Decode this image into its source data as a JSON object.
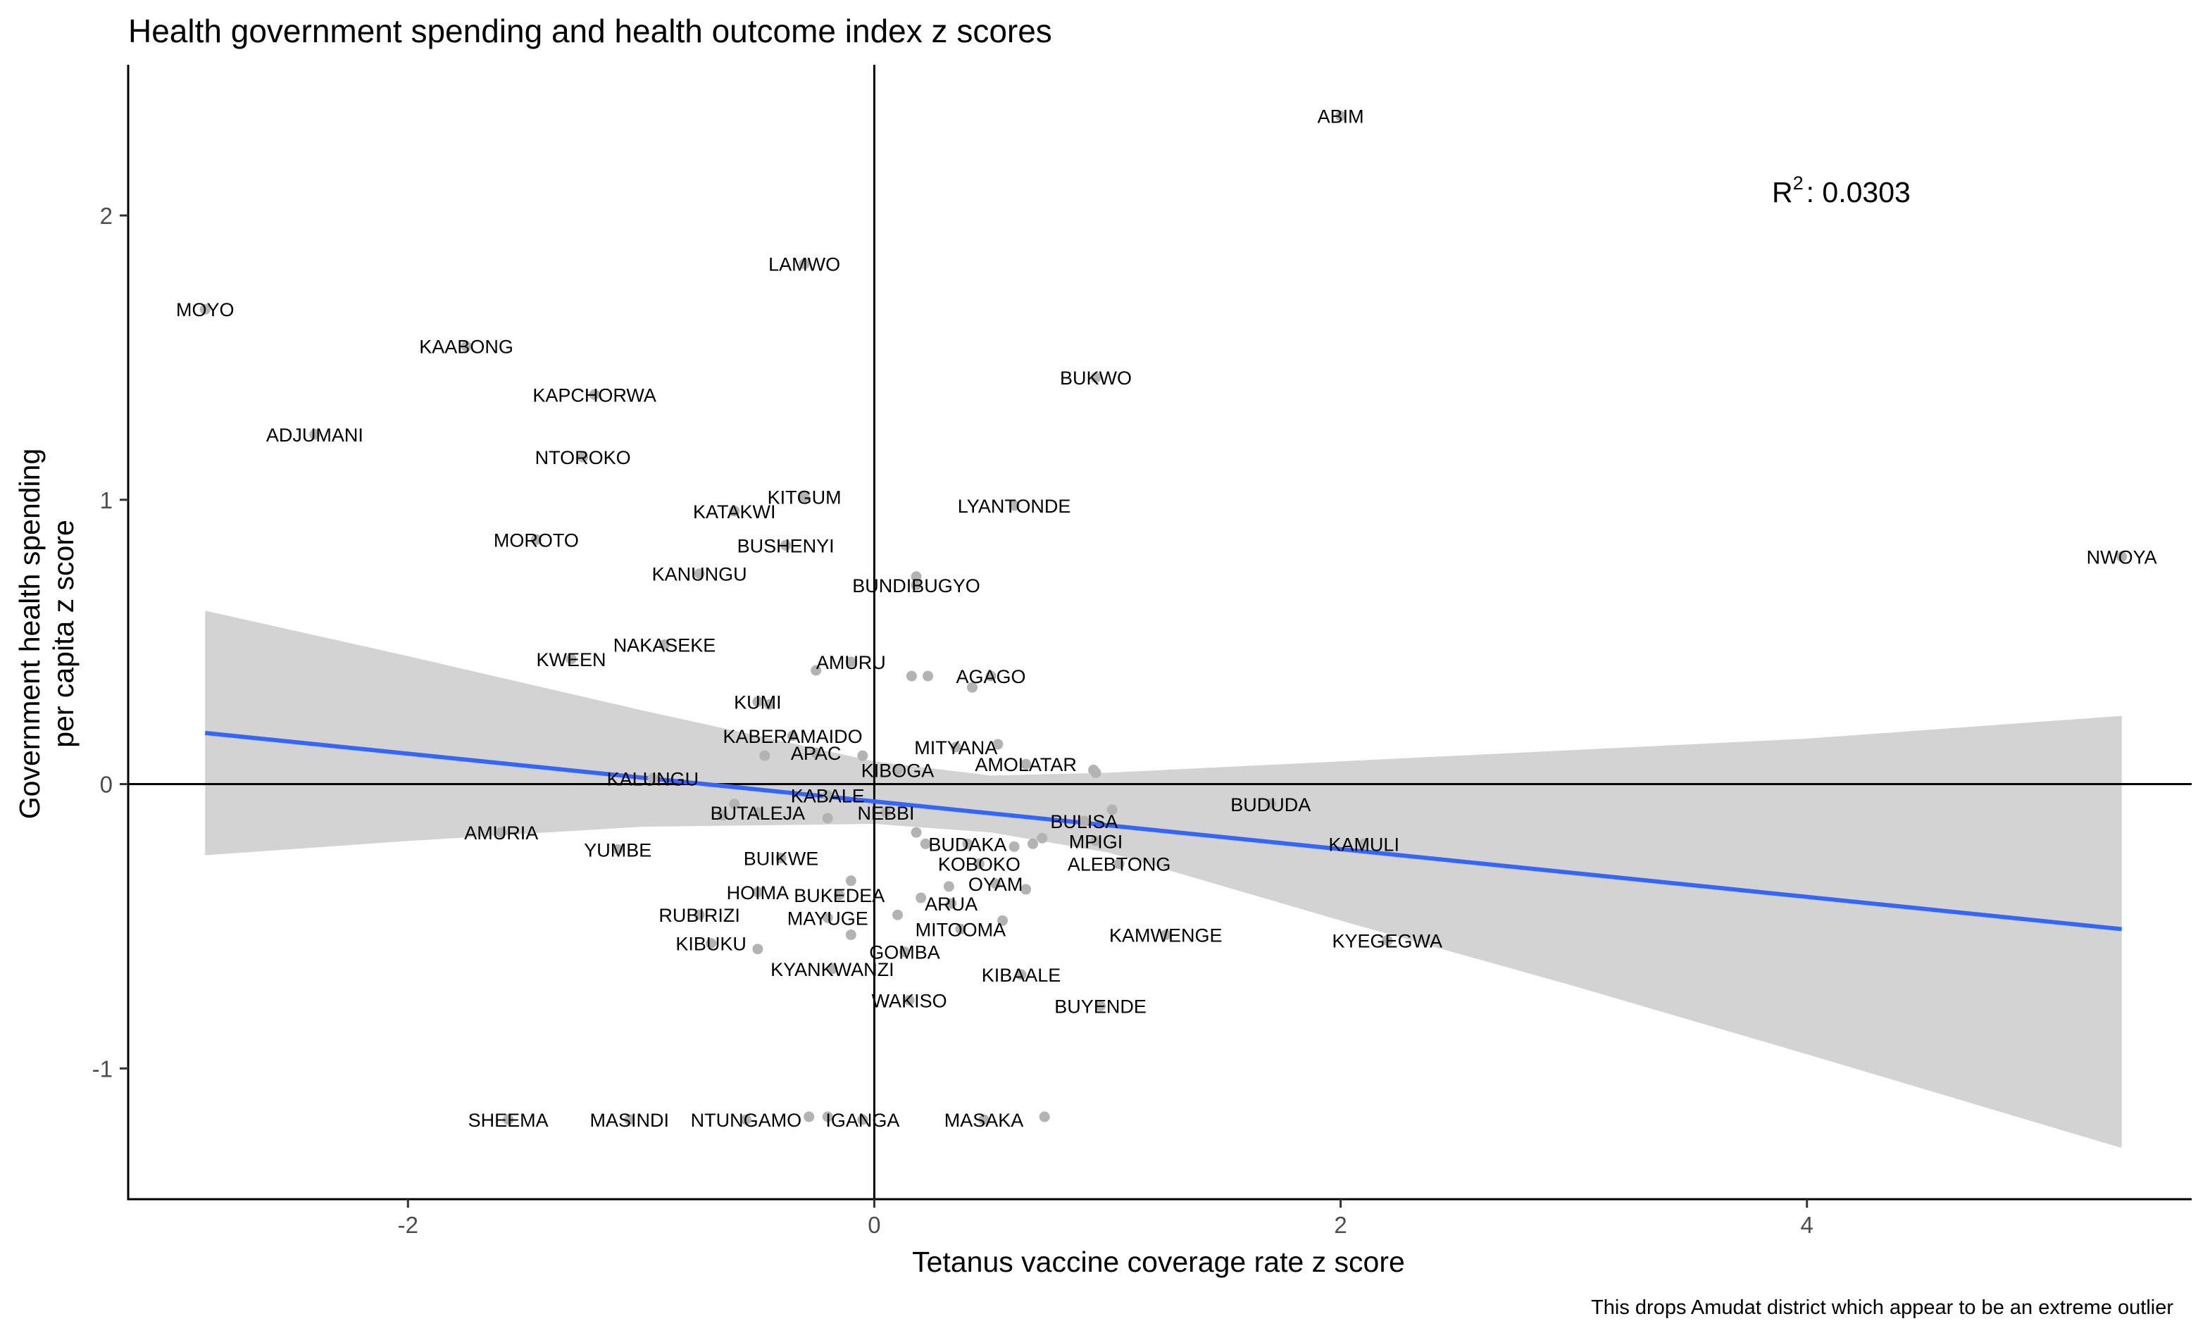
{
  "chart_data": {
    "type": "scatter",
    "title": "Health government spending and health outcome index z scores",
    "xlabel": "Tetanus vaccine coverage rate z score",
    "ylabel_lines": [
      "Government health spending",
      "per capita z score"
    ],
    "caption": "This drops Amudat district which appear to be an extreme outlier",
    "r2": {
      "symbol": "R",
      "sup": "2",
      "value": ": 0.0303"
    },
    "xlim": [
      -3.2,
      5.65
    ],
    "ylim": [
      -1.46,
      2.53
    ],
    "xticks": [
      -2,
      0,
      2,
      4
    ],
    "yticks": [
      -1,
      0,
      1,
      2
    ],
    "reference_lines": {
      "x": 0,
      "y": 0
    },
    "fit_line": {
      "x": [
        -2.87,
        5.35
      ],
      "y": [
        0.18,
        -0.51
      ],
      "color": "#3366FF"
    },
    "confidence_band": {
      "x": [
        -2.87,
        -2.0,
        -1.0,
        0.0,
        0.5,
        1.0,
        2.0,
        3.0,
        4.0,
        5.35
      ],
      "upper": [
        0.61,
        0.45,
        0.26,
        0.08,
        0.03,
        0.04,
        0.08,
        0.12,
        0.16,
        0.24
      ],
      "lower": [
        -0.25,
        -0.2,
        -0.15,
        -0.14,
        -0.17,
        -0.24,
        -0.48,
        -0.71,
        -0.95,
        -1.28
      ],
      "color": "#D3D3D3"
    },
    "point_color": "#b3b3b3",
    "points": [
      {
        "name": "ABIM",
        "x": 2.0,
        "y": 2.35
      },
      {
        "name": "LAMWO",
        "x": -0.3,
        "y": 1.83
      },
      {
        "name": "MOYO",
        "x": -2.87,
        "y": 1.67
      },
      {
        "name": "KAABONG",
        "x": -1.75,
        "y": 1.54
      },
      {
        "name": "BUKWO",
        "x": 0.95,
        "y": 1.43
      },
      {
        "name": "KAPCHORWA",
        "x": -1.2,
        "y": 1.37
      },
      {
        "name": "ADJUMANI",
        "x": -2.4,
        "y": 1.23
      },
      {
        "name": "NTOROKO",
        "x": -1.25,
        "y": 1.15
      },
      {
        "name": "KITGUM",
        "x": -0.3,
        "y": 1.01
      },
      {
        "name": "LYANTONDE",
        "x": 0.6,
        "y": 0.98
      },
      {
        "name": "KATAKWI",
        "x": -0.6,
        "y": 0.96
      },
      {
        "name": "MOROTO",
        "x": -1.45,
        "y": 0.86
      },
      {
        "name": "BUSHENYI",
        "x": -0.38,
        "y": 0.84
      },
      {
        "name": "NWOYA",
        "x": 5.35,
        "y": 0.8
      },
      {
        "name": "KANUNGU",
        "x": -0.75,
        "y": 0.74
      },
      {
        "name": "BUNDIBUGYO",
        "x": 0.18,
        "y": 0.7
      },
      {
        "name": "NAKASEKE",
        "x": -0.9,
        "y": 0.49
      },
      {
        "name": "KWEEN",
        "x": -1.3,
        "y": 0.44
      },
      {
        "name": "AMURU",
        "x": -0.1,
        "y": 0.43
      },
      {
        "name": "AGAGO",
        "x": 0.5,
        "y": 0.38
      },
      {
        "name": "KUMI",
        "x": -0.5,
        "y": 0.29
      },
      {
        "name": "KABERAMAIDO",
        "x": -0.35,
        "y": 0.17
      },
      {
        "name": "MITYANA",
        "x": 0.35,
        "y": 0.13
      },
      {
        "name": "APAC",
        "x": -0.25,
        "y": 0.11
      },
      {
        "name": "AMOLATAR",
        "x": 0.65,
        "y": 0.07
      },
      {
        "name": "KIBOGA",
        "x": 0.1,
        "y": 0.05
      },
      {
        "name": "KALUNGU",
        "x": -0.95,
        "y": 0.02
      },
      {
        "name": "KABALE",
        "x": -0.2,
        "y": -0.04
      },
      {
        "name": "BUDUDA",
        "x": 1.7,
        "y": -0.07
      },
      {
        "name": "BUTALEJA",
        "x": -0.5,
        "y": -0.1
      },
      {
        "name": "NEBBI",
        "x": 0.05,
        "y": -0.1
      },
      {
        "name": "BULISA",
        "x": 0.9,
        "y": -0.13
      },
      {
        "name": "AMURIA",
        "x": -1.6,
        "y": -0.17
      },
      {
        "name": "MPIGI",
        "x": 0.95,
        "y": -0.2
      },
      {
        "name": "BUDAKA",
        "x": 0.4,
        "y": -0.21
      },
      {
        "name": "KAMULI",
        "x": 2.1,
        "y": -0.21
      },
      {
        "name": "YUMBE",
        "x": -1.1,
        "y": -0.23
      },
      {
        "name": "BUIKWE",
        "x": -0.4,
        "y": -0.26
      },
      {
        "name": "KOBOKO",
        "x": 0.45,
        "y": -0.28
      },
      {
        "name": "ALEBTONG",
        "x": 1.05,
        "y": -0.28
      },
      {
        "name": "OYAM",
        "x": 0.52,
        "y": -0.35
      },
      {
        "name": "HOIMA",
        "x": -0.5,
        "y": -0.38
      },
      {
        "name": "BUKEDEA",
        "x": -0.15,
        "y": -0.39
      },
      {
        "name": "ARUA",
        "x": 0.33,
        "y": -0.42
      },
      {
        "name": "RUBIRIZI",
        "x": -0.75,
        "y": -0.46
      },
      {
        "name": "MAYUGE",
        "x": -0.2,
        "y": -0.47
      },
      {
        "name": "MITOOMA",
        "x": 0.37,
        "y": -0.51
      },
      {
        "name": "KAMWENGE",
        "x": 1.25,
        "y": -0.53
      },
      {
        "name": "KYEGEGWA",
        "x": 2.2,
        "y": -0.55
      },
      {
        "name": "KIBUKU",
        "x": -0.7,
        "y": -0.56
      },
      {
        "name": "GOMBA",
        "x": 0.13,
        "y": -0.59
      },
      {
        "name": "KYANKWANZI",
        "x": -0.18,
        "y": -0.65
      },
      {
        "name": "KIBAALE",
        "x": 0.63,
        "y": -0.67
      },
      {
        "name": "WAKISO",
        "x": 0.15,
        "y": -0.76
      },
      {
        "name": "BUYENDE",
        "x": 0.97,
        "y": -0.78
      },
      {
        "name": "SHEEMA",
        "x": -1.57,
        "y": -1.18
      },
      {
        "name": "MASINDI",
        "x": -1.05,
        "y": -1.18
      },
      {
        "name": "NTUNGAMO",
        "x": -0.55,
        "y": -1.18
      },
      {
        "name": "IGANGA",
        "x": -0.05,
        "y": -1.18
      },
      {
        "name": "MASAKA",
        "x": 0.47,
        "y": -1.18
      }
    ],
    "extra_points": [
      {
        "x": -0.38,
        "y": 0.84
      },
      {
        "x": 0.18,
        "y": 0.73
      },
      {
        "x": 0.16,
        "y": 0.38
      },
      {
        "x": 0.23,
        "y": 0.38
      },
      {
        "x": 0.42,
        "y": 0.34
      },
      {
        "x": -0.25,
        "y": 0.4
      },
      {
        "x": -0.45,
        "y": 0.28
      },
      {
        "x": -0.47,
        "y": 0.1
      },
      {
        "x": -0.6,
        "y": -0.07
      },
      {
        "x": -0.65,
        "y": -0.11
      },
      {
        "x": -0.2,
        "y": -0.12
      },
      {
        "x": 0.95,
        "y": 0.04
      },
      {
        "x": 1.02,
        "y": -0.09
      },
      {
        "x": 0.18,
        "y": -0.17
      },
      {
        "x": 0.22,
        "y": -0.21
      },
      {
        "x": 0.68,
        "y": -0.21
      },
      {
        "x": 0.72,
        "y": -0.19
      },
      {
        "x": 0.6,
        "y": -0.22
      },
      {
        "x": 0.32,
        "y": -0.36
      },
      {
        "x": 0.65,
        "y": -0.37
      },
      {
        "x": 0.2,
        "y": -0.4
      },
      {
        "x": -0.1,
        "y": -0.34
      },
      {
        "x": 0.1,
        "y": -0.46
      },
      {
        "x": 0.55,
        "y": -0.48
      },
      {
        "x": -0.1,
        "y": -0.53
      },
      {
        "x": -0.5,
        "y": -0.58
      },
      {
        "x": -0.28,
        "y": -1.17
      },
      {
        "x": -0.2,
        "y": -1.17
      },
      {
        "x": 0.73,
        "y": -1.17
      },
      {
        "x": 0.53,
        "y": 0.14
      },
      {
        "x": 0.94,
        "y": 0.05
      },
      {
        "x": -0.05,
        "y": 0.1
      }
    ]
  }
}
